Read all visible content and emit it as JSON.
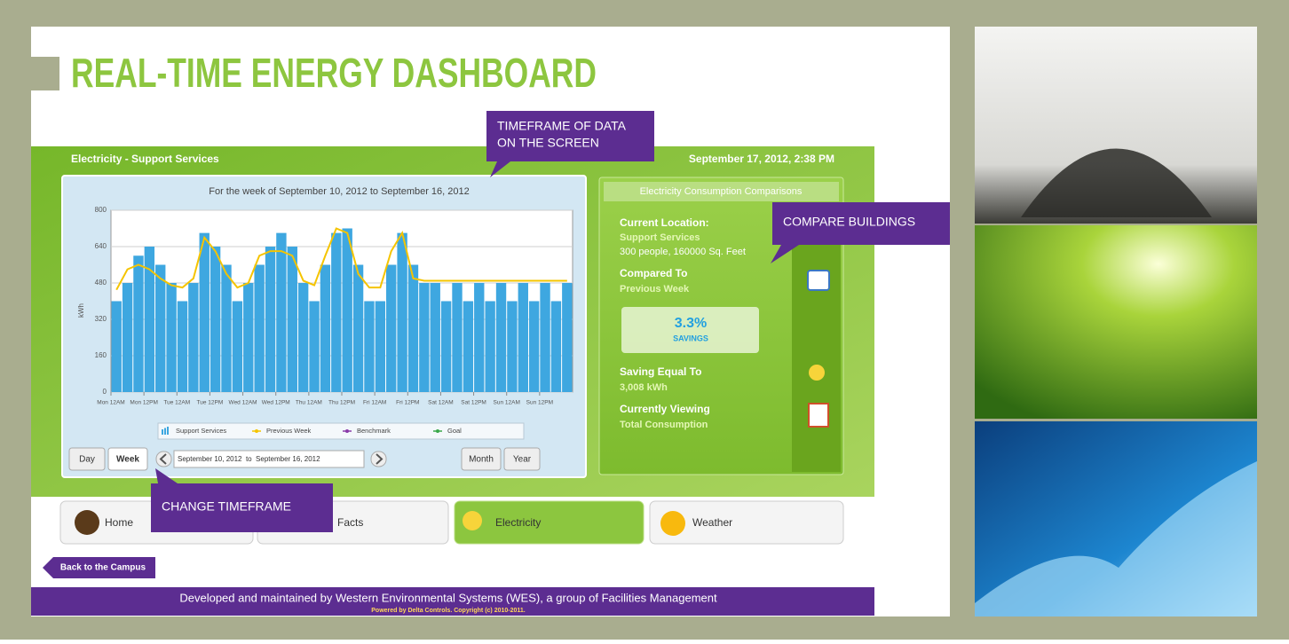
{
  "header": {
    "title": "REAL-TIME ENERGY DASHBOARD"
  },
  "callouts": [
    {
      "lines": [
        "TIMEFRAME OF DATA",
        "ON THE SCREEN"
      ]
    },
    {
      "lines": [
        "COMPARE BUILDINGS"
      ]
    },
    {
      "lines": [
        "CHANGE TIMEFRAME"
      ]
    }
  ],
  "dashboard": {
    "section": "Electricity - Support Services",
    "datetime": "September 17, 2012, 2:38 PM"
  },
  "chart_data": {
    "type": "bar",
    "title": "For the week of September 10, 2012 to September 16, 2012",
    "y_label": "kWh",
    "x": [
      0,
      4,
      8,
      12,
      16,
      20,
      24,
      28,
      32,
      36,
      40,
      44,
      48,
      52,
      56,
      60,
      64,
      68,
      72,
      76,
      80,
      84,
      88,
      92,
      96,
      100,
      104,
      108,
      112,
      116,
      120,
      124,
      128,
      132,
      136,
      140,
      144,
      148,
      152,
      156,
      160,
      164
    ],
    "xlim": [
      0,
      168
    ],
    "xticks": [
      {
        "value": 0,
        "label": "Mon 12AM"
      },
      {
        "value": 12,
        "label": "Mon 12PM"
      },
      {
        "value": 24,
        "label": "Tue 12AM"
      },
      {
        "value": 36,
        "label": "Tue 12PM"
      },
      {
        "value": 48,
        "label": "Wed 12AM"
      },
      {
        "value": 60,
        "label": "Wed 12PM"
      },
      {
        "value": 72,
        "label": "Thu 12AM"
      },
      {
        "value": 84,
        "label": "Thu 12PM"
      },
      {
        "value": 96,
        "label": "Fri 12AM"
      },
      {
        "value": 108,
        "label": "Fri 12PM"
      },
      {
        "value": 120,
        "label": "Sat 12AM"
      },
      {
        "value": 132,
        "label": "Sat 12PM"
      },
      {
        "value": 144,
        "label": "Sun 12AM"
      },
      {
        "value": 156,
        "label": "Sun 12PM"
      }
    ],
    "ylim": [
      0,
      800
    ],
    "yticks": [
      0,
      160,
      320,
      480,
      640,
      800
    ],
    "grid": true,
    "series": [
      {
        "name": "Support Services",
        "type": "bar",
        "color": "#3ea7e0",
        "values": [
          400,
          480,
          600,
          640,
          560,
          480,
          400,
          480,
          700,
          640,
          560,
          400,
          480,
          560,
          640,
          700,
          640,
          480,
          400,
          560,
          700,
          720,
          560,
          400,
          400,
          560,
          700,
          560,
          480,
          480,
          400,
          480,
          400,
          480,
          400,
          480,
          400,
          480,
          400,
          480,
          400,
          480
        ]
      },
      {
        "name": "Previous Week",
        "type": "line",
        "color": "#f5c400",
        "values": [
          450,
          540,
          560,
          540,
          500,
          470,
          460,
          500,
          680,
          620,
          520,
          460,
          480,
          600,
          620,
          620,
          600,
          490,
          470,
          600,
          720,
          700,
          520,
          460,
          460,
          620,
          700,
          500,
          490,
          490,
          490,
          490,
          490,
          490,
          490,
          490,
          490,
          490,
          490,
          490,
          490,
          490
        ]
      },
      {
        "name": "Benchmark",
        "type": "line",
        "color": "#8a3aa8",
        "values": [
          null,
          null,
          null,
          null,
          null,
          null,
          null,
          null,
          null,
          null,
          null,
          null,
          null,
          null,
          null,
          null,
          null,
          null,
          null,
          null,
          null,
          null,
          null,
          null,
          null,
          null,
          null,
          null,
          null,
          null,
          null,
          null,
          null,
          null,
          null,
          null,
          null,
          null,
          null,
          null,
          null,
          null
        ]
      },
      {
        "name": "Goal",
        "type": "line",
        "color": "#3aa84a",
        "values": [
          null,
          null,
          null,
          null,
          null,
          null,
          null,
          null,
          null,
          null,
          null,
          null,
          null,
          null,
          null,
          null,
          null,
          null,
          null,
          null,
          null,
          null,
          null,
          null,
          null,
          null,
          null,
          null,
          null,
          null,
          null,
          null,
          null,
          null,
          null,
          null,
          null,
          null,
          null,
          null,
          null,
          null
        ]
      }
    ]
  },
  "controls": {
    "buttons": [
      "Day",
      "Week",
      "Month",
      "Year"
    ],
    "range": "September 10, 2012  to  September 16, 2012"
  },
  "comparisons": {
    "title": "Electricity Consumption Comparisons",
    "location_label": "Current Location:",
    "location": "Support Services",
    "location_detail": "300 people, 160000 Sq. Feet",
    "compared_label": "Compared To",
    "compared": "Previous Week",
    "savings_value": "3.3%",
    "savings_label": "SAVINGS",
    "equal_label": "Saving Equal To",
    "equal": "3,008 kWh",
    "viewing_label": "Currently Viewing",
    "viewing": "Total Consumption"
  },
  "nav": [
    "Home",
    "Facts",
    "Electricity",
    "Weather"
  ],
  "back": "Back to the Campus",
  "footer": {
    "line1": "Developed and maintained by Western Environmental Systems (WES), a group of Facilities Management",
    "line2": "Powered by Delta Controls. Copyright (c) 2010-2011."
  }
}
